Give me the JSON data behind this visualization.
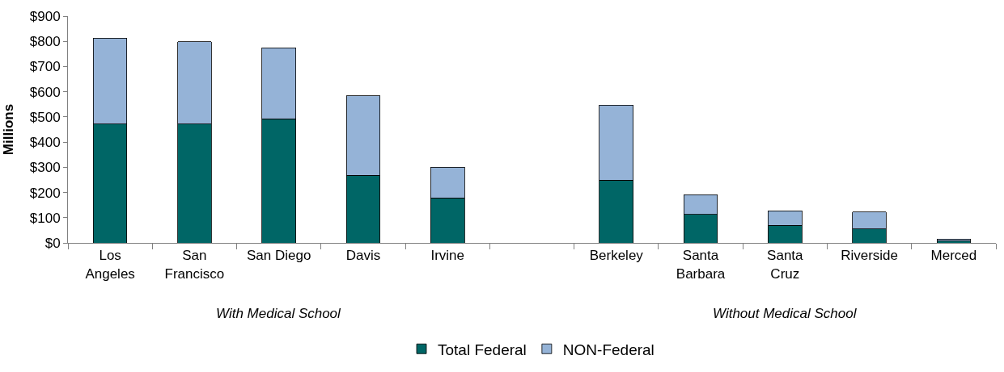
{
  "chart_data": {
    "type": "bar",
    "stacked": true,
    "ylabel": "Millions",
    "categories": [
      "Los Angeles",
      "San Francisco",
      "San Diego",
      "Davis",
      "Irvine",
      null,
      "Berkeley",
      "Santa Barbara",
      "Santa Cruz",
      "Riverside",
      "Merced"
    ],
    "series": [
      {
        "name": "Total Federal",
        "color": "#006666",
        "values": [
          472,
          472,
          492,
          269,
          179,
          null,
          249,
          113,
          69,
          55,
          8
        ]
      },
      {
        "name": "NON-Federal",
        "color": "#95b3d7",
        "values": [
          341,
          327,
          283,
          315,
          122,
          null,
          298,
          78,
          58,
          67,
          7
        ]
      }
    ],
    "ylim": [
      0,
      900
    ],
    "yticks": [
      {
        "value": 0,
        "label": "$0"
      },
      {
        "value": 100,
        "label": "$100"
      },
      {
        "value": 200,
        "label": "$200"
      },
      {
        "value": 300,
        "label": "$300"
      },
      {
        "value": 400,
        "label": "$400"
      },
      {
        "value": 500,
        "label": "$500"
      },
      {
        "value": 600,
        "label": "$600"
      },
      {
        "value": 700,
        "label": "$700"
      },
      {
        "value": 800,
        "label": "$800"
      },
      {
        "value": 900,
        "label": "$900"
      }
    ],
    "annotations": [
      "With Medical School",
      "Without Medical School"
    ],
    "legend": "bottom"
  }
}
